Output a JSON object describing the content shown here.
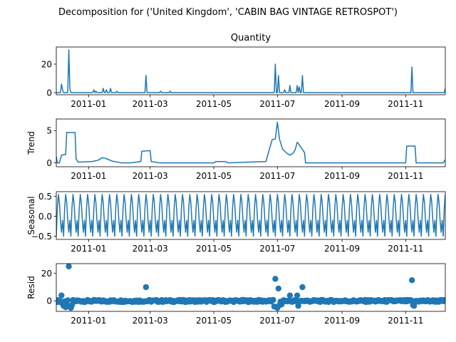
{
  "chart_data": {
    "type": "line",
    "suptitle": "Decomposition for ('United Kingdom', 'CABIN BAG VINTAGE RETROSPOT')",
    "x_range": [
      "2010-12-01",
      "2011-12-09"
    ],
    "x_ticks": [
      "2011-01-01",
      "2011-03-01",
      "2011-05-01",
      "2011-07-01",
      "2011-09-01",
      "2011-11-01"
    ],
    "x_tick_labels": [
      "2011-01",
      "2011-03",
      "2011-05",
      "2011-07",
      "2011-09",
      "2011-11"
    ],
    "color": "#1f77b4",
    "panels": [
      {
        "id": "observed",
        "title": "Quantity",
        "ylabel": "",
        "ylim": [
          -1.5,
          32
        ],
        "yticks": [
          0,
          20
        ],
        "kind": "line",
        "baseline": 0,
        "spikes": [
          {
            "date": "2010-12-06",
            "value": 6
          },
          {
            "date": "2010-12-07",
            "value": 2
          },
          {
            "date": "2010-12-13",
            "value": 30
          },
          {
            "date": "2010-12-14",
            "value": 3
          },
          {
            "date": "2011-01-06",
            "value": 2
          },
          {
            "date": "2011-01-08",
            "value": 1
          },
          {
            "date": "2011-01-15",
            "value": 3
          },
          {
            "date": "2011-01-18",
            "value": 2
          },
          {
            "date": "2011-01-22",
            "value": 3
          },
          {
            "date": "2011-01-28",
            "value": 1
          },
          {
            "date": "2011-02-25",
            "value": 12
          },
          {
            "date": "2011-03-11",
            "value": 1
          },
          {
            "date": "2011-03-20",
            "value": 1
          },
          {
            "date": "2011-06-29",
            "value": 20
          },
          {
            "date": "2011-07-02",
            "value": 12
          },
          {
            "date": "2011-07-08",
            "value": 2
          },
          {
            "date": "2011-07-13",
            "value": 5
          },
          {
            "date": "2011-07-20",
            "value": 5
          },
          {
            "date": "2011-07-22",
            "value": 4
          },
          {
            "date": "2011-07-25",
            "value": 12
          },
          {
            "date": "2011-11-07",
            "value": 18
          },
          {
            "date": "2011-12-09",
            "value": 3
          }
        ]
      },
      {
        "id": "trend",
        "title": "",
        "ylabel": "Trend",
        "ylim": [
          -0.6,
          6.8
        ],
        "yticks": [
          0,
          5
        ],
        "kind": "line",
        "points": [
          {
            "date": "2010-12-01",
            "value": 1.0
          },
          {
            "date": "2010-12-02",
            "value": 0.0
          },
          {
            "date": "2010-12-04",
            "value": 0.0
          },
          {
            "date": "2010-12-06",
            "value": 1.2
          },
          {
            "date": "2010-12-10",
            "value": 1.3
          },
          {
            "date": "2010-12-11",
            "value": 4.7
          },
          {
            "date": "2010-12-19",
            "value": 4.7
          },
          {
            "date": "2010-12-20",
            "value": 0.6
          },
          {
            "date": "2010-12-22",
            "value": 0.1
          },
          {
            "date": "2011-01-04",
            "value": 0.2
          },
          {
            "date": "2011-01-10",
            "value": 0.4
          },
          {
            "date": "2011-01-14",
            "value": 0.8
          },
          {
            "date": "2011-01-19",
            "value": 0.6
          },
          {
            "date": "2011-01-23",
            "value": 0.3
          },
          {
            "date": "2011-02-01",
            "value": 0.0
          },
          {
            "date": "2011-02-10",
            "value": 0.0
          },
          {
            "date": "2011-02-20",
            "value": 0.2
          },
          {
            "date": "2011-02-21",
            "value": 1.8
          },
          {
            "date": "2011-03-01",
            "value": 1.9
          },
          {
            "date": "2011-03-02",
            "value": 0.2
          },
          {
            "date": "2011-03-10",
            "value": 0.0
          },
          {
            "date": "2011-03-20",
            "value": 0.0
          },
          {
            "date": "2011-04-01",
            "value": 0.0
          },
          {
            "date": "2011-04-20",
            "value": 0.0
          },
          {
            "date": "2011-05-01",
            "value": 0.0
          },
          {
            "date": "2011-05-03",
            "value": 0.2
          },
          {
            "date": "2011-05-12",
            "value": 0.2
          },
          {
            "date": "2011-05-15",
            "value": 0.0
          },
          {
            "date": "2011-06-01",
            "value": 0.1
          },
          {
            "date": "2011-06-20",
            "value": 0.2
          },
          {
            "date": "2011-06-24",
            "value": 2.5
          },
          {
            "date": "2011-06-26",
            "value": 3.6
          },
          {
            "date": "2011-06-29",
            "value": 3.7
          },
          {
            "date": "2011-07-01",
            "value": 6.3
          },
          {
            "date": "2011-07-03",
            "value": 3.7
          },
          {
            "date": "2011-07-06",
            "value": 2.1
          },
          {
            "date": "2011-07-10",
            "value": 1.5
          },
          {
            "date": "2011-07-13",
            "value": 1.2
          },
          {
            "date": "2011-07-16",
            "value": 1.5
          },
          {
            "date": "2011-07-18",
            "value": 2.0
          },
          {
            "date": "2011-07-20",
            "value": 3.2
          },
          {
            "date": "2011-07-22",
            "value": 2.8
          },
          {
            "date": "2011-07-24",
            "value": 2.3
          },
          {
            "date": "2011-07-27",
            "value": 1.6
          },
          {
            "date": "2011-07-28",
            "value": 0.0
          },
          {
            "date": "2011-08-15",
            "value": 0.0
          },
          {
            "date": "2011-09-15",
            "value": 0.0
          },
          {
            "date": "2011-10-20",
            "value": 0.0
          },
          {
            "date": "2011-11-01",
            "value": 0.0
          },
          {
            "date": "2011-11-02",
            "value": 2.6
          },
          {
            "date": "2011-11-10",
            "value": 2.6
          },
          {
            "date": "2011-11-11",
            "value": 0.0
          },
          {
            "date": "2011-12-07",
            "value": 0.0
          },
          {
            "date": "2011-12-09",
            "value": 0.5
          }
        ]
      },
      {
        "id": "seasonal",
        "title": "",
        "ylabel": "Seasonal",
        "ylim": [
          -0.58,
          0.62
        ],
        "yticks": [
          0.5,
          0.0,
          -0.5
        ],
        "ytick_labels": [
          "0.5",
          "0.0",
          "−0.5"
        ],
        "kind": "periodic",
        "period_days": 7,
        "amplitude": 0.55,
        "pattern": [
          -0.5,
          0.2,
          0.55,
          0.35,
          -0.1,
          -0.4,
          -0.1
        ]
      },
      {
        "id": "resid",
        "title": "",
        "ylabel": "Resid",
        "ylim": [
          -7.5,
          27
        ],
        "yticks": [
          0,
          20
        ],
        "kind": "scatter",
        "outliers": [
          {
            "date": "2010-12-06",
            "value": 4.0
          },
          {
            "date": "2010-12-07",
            "value": -2.0
          },
          {
            "date": "2010-12-08",
            "value": -3.5
          },
          {
            "date": "2010-12-10",
            "value": -4.5
          },
          {
            "date": "2010-12-11",
            "value": -2.5
          },
          {
            "date": "2010-12-13",
            "value": 25.0
          },
          {
            "date": "2010-12-14",
            "value": -4.0
          },
          {
            "date": "2010-12-15",
            "value": -5.0
          },
          {
            "date": "2010-12-16",
            "value": -3.0
          },
          {
            "date": "2011-02-25",
            "value": 10.0
          },
          {
            "date": "2011-06-28",
            "value": -4.0
          },
          {
            "date": "2011-06-29",
            "value": 16.0
          },
          {
            "date": "2011-06-30",
            "value": -4.5
          },
          {
            "date": "2011-07-01",
            "value": -5.0
          },
          {
            "date": "2011-07-02",
            "value": 9.0
          },
          {
            "date": "2011-07-03",
            "value": -3.0
          },
          {
            "date": "2011-07-05",
            "value": -2.5
          },
          {
            "date": "2011-07-13",
            "value": 4.0
          },
          {
            "date": "2011-07-20",
            "value": 4.0
          },
          {
            "date": "2011-07-21",
            "value": -3.5
          },
          {
            "date": "2011-07-25",
            "value": 10.0
          },
          {
            "date": "2011-11-07",
            "value": 15.0
          },
          {
            "date": "2011-11-08",
            "value": -3.0
          },
          {
            "date": "2011-11-09",
            "value": -3.5
          }
        ]
      }
    ]
  }
}
